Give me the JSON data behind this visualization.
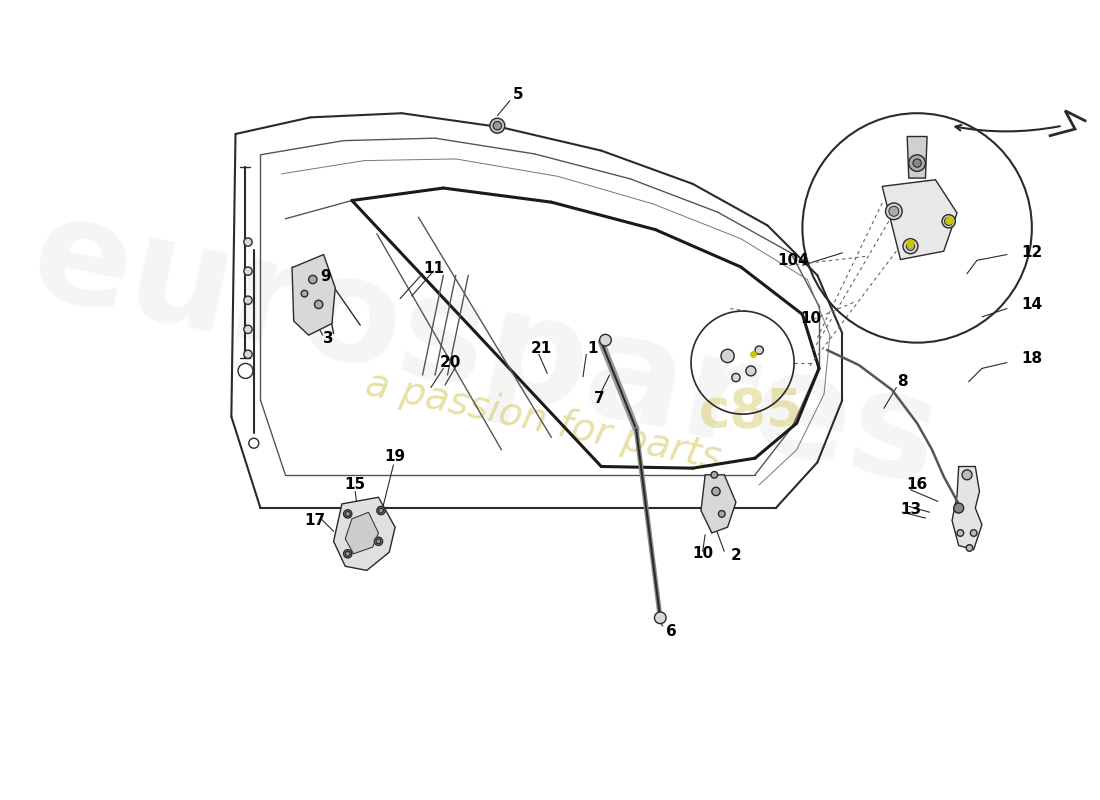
{
  "bg_color": "#ffffff",
  "line_color": "#2a2a2a",
  "label_color": "#000000",
  "yellow_color": "#c8c800",
  "gray_fill": "#d8d8d8",
  "dark_gray": "#888888",
  "wm_gray": "#e0e0e0",
  "wm_yellow": "#d4c860",
  "figsize": [
    11.0,
    8.0
  ],
  "dpi": 100,
  "xlim": [
    0,
    1100
  ],
  "ylim": [
    0,
    800
  ]
}
